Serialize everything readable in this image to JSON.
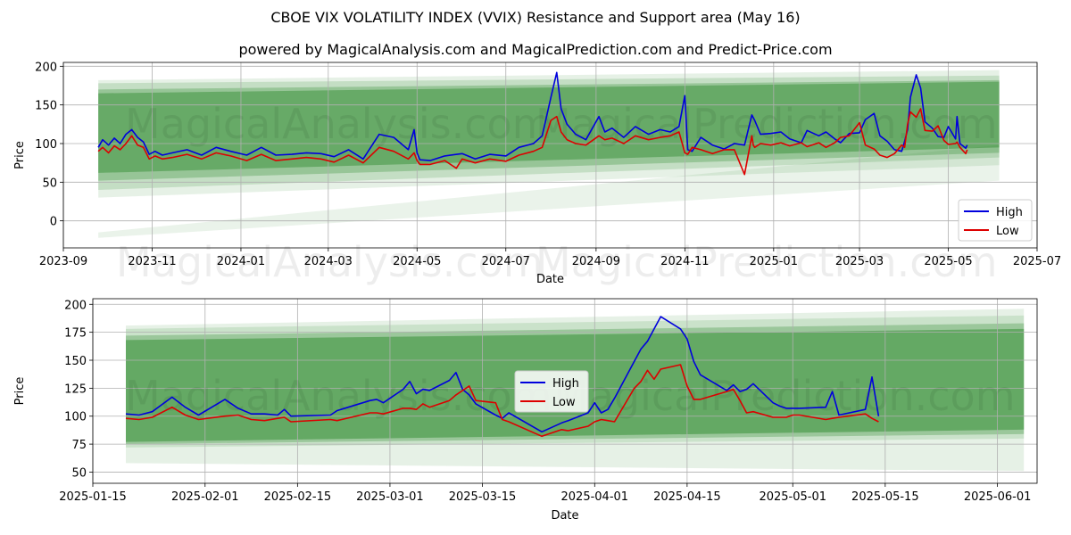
{
  "title": "CBOE VIX VOLATILITY INDEX (VVIX) Resistance and Support area (May 16)",
  "subtitle": "powered by MagicalAnalysis.com and MagicalPrediction.com and Predict-Price.com",
  "watermarks": [
    "MagicalAnalysis.com",
    "MagicalPrediction.com"
  ],
  "colors": {
    "high": "#0000dd",
    "low": "#dd0000",
    "band": "#2e8b2e",
    "grid": "#b0b0b0"
  },
  "chart_data": [
    {
      "type": "line",
      "xlabel": "Date",
      "ylabel": "Price",
      "xlim": [
        "2023-09-01",
        "2025-07-01"
      ],
      "ylim": [
        -35,
        205
      ],
      "x_ticks": [
        "2023-09",
        "2023-11",
        "2024-01",
        "2024-03",
        "2024-05",
        "2024-07",
        "2024-09",
        "2024-11",
        "2025-01",
        "2025-03",
        "2025-05",
        "2025-07"
      ],
      "x_tick_dates": [
        "2023-09-01",
        "2023-11-01",
        "2024-01-01",
        "2024-03-01",
        "2024-05-01",
        "2024-07-01",
        "2024-09-01",
        "2024-11-01",
        "2025-01-01",
        "2025-03-01",
        "2025-05-01",
        "2025-07-01"
      ],
      "y_ticks": [
        0,
        50,
        100,
        150,
        200
      ],
      "legend": {
        "position": "lower-right",
        "entries": [
          "High",
          "Low"
        ]
      },
      "grid": true,
      "bands": [
        {
          "start": "2023-09-25",
          "end": "2025-06-05",
          "y0_lo": 62,
          "y0_hi": 165,
          "y1_lo": 95,
          "y1_hi": 180,
          "opacity": 0.45
        },
        {
          "start": "2023-09-25",
          "end": "2025-06-05",
          "y0_lo": 52,
          "y0_hi": 170,
          "y1_lo": 88,
          "y1_hi": 182,
          "opacity": 0.3
        },
        {
          "start": "2023-09-25",
          "end": "2025-06-05",
          "y0_lo": 40,
          "y0_hi": 178,
          "y1_lo": 82,
          "y1_hi": 188,
          "opacity": 0.18
        },
        {
          "start": "2023-09-25",
          "end": "2025-06-05",
          "y0_lo": 30,
          "y0_hi": 182,
          "y1_lo": 72,
          "y1_hi": 195,
          "opacity": 0.12
        },
        {
          "start": "2023-09-25",
          "end": "2025-06-05",
          "y0_lo": -22,
          "y0_hi": -15,
          "y1_lo": 52,
          "y1_hi": 98,
          "opacity": 0.1
        }
      ],
      "series": [
        {
          "name": "High",
          "x": [
            "2023-09-25",
            "2023-09-28",
            "2023-10-02",
            "2023-10-06",
            "2023-10-10",
            "2023-10-14",
            "2023-10-18",
            "2023-10-22",
            "2023-10-26",
            "2023-10-30",
            "2023-11-03",
            "2023-11-08",
            "2023-11-15",
            "2023-11-25",
            "2023-12-05",
            "2023-12-15",
            "2023-12-25",
            "2024-01-05",
            "2024-01-15",
            "2024-01-25",
            "2024-02-05",
            "2024-02-15",
            "2024-02-25",
            "2024-03-05",
            "2024-03-15",
            "2024-03-25",
            "2024-04-05",
            "2024-04-15",
            "2024-04-25",
            "2024-04-29",
            "2024-05-01",
            "2024-05-03",
            "2024-05-10",
            "2024-05-20",
            "2024-06-01",
            "2024-06-10",
            "2024-06-20",
            "2024-07-01",
            "2024-07-10",
            "2024-07-20",
            "2024-07-26",
            "2024-08-01",
            "2024-08-05",
            "2024-08-08",
            "2024-08-12",
            "2024-08-18",
            "2024-08-25",
            "2024-09-03",
            "2024-09-07",
            "2024-09-12",
            "2024-09-20",
            "2024-09-28",
            "2024-10-07",
            "2024-10-15",
            "2024-10-22",
            "2024-10-28",
            "2024-11-01",
            "2024-11-03",
            "2024-11-06",
            "2024-11-12",
            "2024-11-20",
            "2024-11-28",
            "2024-12-05",
            "2024-12-12",
            "2024-12-17",
            "2024-12-19",
            "2024-12-23",
            "2024-12-30",
            "2025-01-06",
            "2025-01-12",
            "2025-01-20",
            "2025-01-24",
            "2025-02-01",
            "2025-02-06",
            "2025-02-12",
            "2025-02-16",
            "2025-02-22",
            "2025-03-01",
            "2025-03-05",
            "2025-03-11",
            "2025-03-15",
            "2025-03-20",
            "2025-03-25",
            "2025-03-30",
            "2025-04-01",
            "2025-04-03",
            "2025-04-05",
            "2025-04-09",
            "2025-04-12",
            "2025-04-15",
            "2025-04-20",
            "2025-04-24",
            "2025-04-28",
            "2025-05-01",
            "2025-05-06",
            "2025-05-07",
            "2025-05-09",
            "2025-05-13",
            "2025-05-14"
          ],
          "values": [
            95,
            105,
            98,
            107,
            100,
            112,
            118,
            108,
            102,
            86,
            90,
            85,
            88,
            92,
            85,
            95,
            90,
            85,
            95,
            85,
            86,
            88,
            87,
            83,
            92,
            80,
            112,
            108,
            92,
            118,
            88,
            79,
            78,
            84,
            87,
            80,
            86,
            84,
            95,
            100,
            110,
            160,
            192,
            145,
            125,
            112,
            105,
            135,
            115,
            120,
            108,
            122,
            112,
            118,
            115,
            122,
            162,
            92,
            90,
            108,
            98,
            93,
            100,
            98,
            137,
            130,
            112,
            113,
            115,
            106,
            101,
            117,
            110,
            115,
            106,
            101,
            113,
            114,
            131,
            139,
            110,
            103,
            92,
            90,
            103,
            118,
            160,
            189,
            172,
            128,
            120,
            109,
            108,
            122,
            106,
            135,
            100,
            94,
            98
          ]
        },
        {
          "name": "Low",
          "x": [
            "2023-09-25",
            "2023-09-28",
            "2023-10-02",
            "2023-10-06",
            "2023-10-10",
            "2023-10-14",
            "2023-10-18",
            "2023-10-22",
            "2023-10-26",
            "2023-10-30",
            "2023-11-03",
            "2023-11-08",
            "2023-11-15",
            "2023-11-25",
            "2023-12-05",
            "2023-12-15",
            "2023-12-25",
            "2024-01-05",
            "2024-01-15",
            "2024-01-25",
            "2024-02-05",
            "2024-02-15",
            "2024-02-25",
            "2024-03-05",
            "2024-03-15",
            "2024-03-25",
            "2024-04-05",
            "2024-04-15",
            "2024-04-25",
            "2024-04-29",
            "2024-05-01",
            "2024-05-03",
            "2024-05-10",
            "2024-05-20",
            "2024-05-28",
            "2024-06-01",
            "2024-06-10",
            "2024-06-20",
            "2024-07-01",
            "2024-07-10",
            "2024-07-20",
            "2024-07-26",
            "2024-08-01",
            "2024-08-05",
            "2024-08-08",
            "2024-08-12",
            "2024-08-18",
            "2024-08-25",
            "2024-09-03",
            "2024-09-07",
            "2024-09-12",
            "2024-09-20",
            "2024-09-28",
            "2024-10-07",
            "2024-10-15",
            "2024-10-22",
            "2024-10-28",
            "2024-11-01",
            "2024-11-03",
            "2024-11-06",
            "2024-11-12",
            "2024-11-20",
            "2024-11-28",
            "2024-12-05",
            "2024-12-12",
            "2024-12-17",
            "2024-12-18",
            "2024-12-19",
            "2024-12-23",
            "2024-12-30",
            "2025-01-06",
            "2025-01-12",
            "2025-01-20",
            "2025-01-24",
            "2025-02-01",
            "2025-02-06",
            "2025-02-12",
            "2025-02-16",
            "2025-02-22",
            "2025-03-01",
            "2025-03-05",
            "2025-03-11",
            "2025-03-15",
            "2025-03-20",
            "2025-03-25",
            "2025-03-30",
            "2025-04-01",
            "2025-04-03",
            "2025-04-05",
            "2025-04-09",
            "2025-04-12",
            "2025-04-15",
            "2025-04-20",
            "2025-04-24",
            "2025-04-28",
            "2025-05-01",
            "2025-05-06",
            "2025-05-07",
            "2025-05-09",
            "2025-05-13",
            "2025-05-14"
          ],
          "values": [
            90,
            95,
            88,
            97,
            92,
            100,
            110,
            98,
            95,
            80,
            84,
            80,
            82,
            86,
            80,
            88,
            84,
            78,
            86,
            78,
            80,
            82,
            80,
            76,
            85,
            75,
            95,
            90,
            80,
            88,
            78,
            73,
            73,
            78,
            68,
            80,
            75,
            80,
            77,
            85,
            90,
            95,
            130,
            135,
            115,
            105,
            100,
            98,
            110,
            105,
            107,
            100,
            110,
            105,
            108,
            110,
            115,
            88,
            86,
            95,
            92,
            87,
            92,
            92,
            60,
            110,
            98,
            95,
            100,
            98,
            101,
            97,
            101,
            96,
            101,
            95,
            101,
            108,
            110,
            127,
            98,
            93,
            85,
            82,
            87,
            98,
            95,
            125,
            141,
            134,
            145,
            117,
            116,
            123,
            104,
            99,
            100,
            102,
            95,
            87,
            92
          ]
        }
      ]
    },
    {
      "type": "line",
      "xlabel": "Date",
      "ylabel": "Price",
      "xlim": [
        "2025-01-15",
        "2025-06-07"
      ],
      "ylim": [
        40,
        205
      ],
      "x_ticks": [
        "2025-01-15",
        "2025-02-01",
        "2025-02-15",
        "2025-03-01",
        "2025-03-15",
        "2025-04-01",
        "2025-04-15",
        "2025-05-01",
        "2025-05-15",
        "2025-06-01"
      ],
      "y_ticks": [
        50,
        75,
        100,
        125,
        150,
        175,
        200
      ],
      "legend": {
        "position": "center",
        "entries": [
          "High",
          "Low"
        ]
      },
      "grid": true,
      "bands": [
        {
          "start": "2025-01-20",
          "end": "2025-06-05",
          "y0_lo": 77,
          "y0_hi": 168,
          "y1_lo": 88,
          "y1_hi": 178,
          "opacity": 0.5
        },
        {
          "start": "2025-01-20",
          "end": "2025-06-05",
          "y0_lo": 75,
          "y0_hi": 172,
          "y1_lo": 84,
          "y1_hi": 183,
          "opacity": 0.3
        },
        {
          "start": "2025-01-20",
          "end": "2025-06-05",
          "y0_lo": 72,
          "y0_hi": 178,
          "y1_lo": 80,
          "y1_hi": 190,
          "opacity": 0.15
        },
        {
          "start": "2025-01-20",
          "end": "2025-06-05",
          "y0_lo": 58,
          "y0_hi": 181,
          "y1_lo": 51,
          "y1_hi": 196,
          "opacity": 0.12
        }
      ],
      "series": [
        {
          "name": "High",
          "x": [
            "2025-01-20",
            "2025-01-22",
            "2025-01-24",
            "2025-01-27",
            "2025-01-29",
            "2025-01-31",
            "2025-02-04",
            "2025-02-06",
            "2025-02-08",
            "2025-02-10",
            "2025-02-12",
            "2025-02-13",
            "2025-02-14",
            "2025-02-20",
            "2025-02-21",
            "2025-02-26",
            "2025-02-27",
            "2025-02-28",
            "2025-03-03",
            "2025-03-04",
            "2025-03-05",
            "2025-03-06",
            "2025-03-07",
            "2025-03-10",
            "2025-03-11",
            "2025-03-12",
            "2025-03-13",
            "2025-03-14",
            "2025-03-17",
            "2025-03-18",
            "2025-03-19",
            "2025-03-24",
            "2025-03-27",
            "2025-03-28",
            "2025-03-31",
            "2025-04-01",
            "2025-04-02",
            "2025-04-03",
            "2025-04-04",
            "2025-04-07",
            "2025-04-08",
            "2025-04-09",
            "2025-04-10",
            "2025-04-11",
            "2025-04-14",
            "2025-04-15",
            "2025-04-16",
            "2025-04-17",
            "2025-04-21",
            "2025-04-22",
            "2025-04-23",
            "2025-04-24",
            "2025-04-25",
            "2025-04-28",
            "2025-04-29",
            "2025-04-30",
            "2025-05-01",
            "2025-05-02",
            "2025-05-06",
            "2025-05-07",
            "2025-05-08",
            "2025-05-12",
            "2025-05-13",
            "2025-05-14"
          ],
          "values": [
            102,
            101,
            104,
            117,
            108,
            101,
            115,
            107,
            102,
            102,
            101,
            106,
            100,
            101,
            105,
            114,
            115,
            112,
            124,
            131,
            120,
            124,
            123,
            132,
            139,
            124,
            119,
            111,
            101,
            98,
            103,
            86,
            94,
            96,
            103,
            112,
            103,
            106,
            116,
            149,
            160,
            167,
            178,
            189,
            178,
            169,
            149,
            137,
            123,
            128,
            122,
            124,
            129,
            112,
            109,
            107,
            107,
            107,
            108,
            122,
            101,
            106,
            135,
            100
          ]
        },
        {
          "name": "Low",
          "x": [
            "2025-01-20",
            "2025-01-22",
            "2025-01-24",
            "2025-01-27",
            "2025-01-29",
            "2025-01-31",
            "2025-02-04",
            "2025-02-06",
            "2025-02-08",
            "2025-02-10",
            "2025-02-12",
            "2025-02-13",
            "2025-02-14",
            "2025-02-20",
            "2025-02-21",
            "2025-02-26",
            "2025-02-27",
            "2025-02-28",
            "2025-03-03",
            "2025-03-04",
            "2025-03-05",
            "2025-03-06",
            "2025-03-07",
            "2025-03-10",
            "2025-03-11",
            "2025-03-12",
            "2025-03-13",
            "2025-03-14",
            "2025-03-17",
            "2025-03-18",
            "2025-03-19",
            "2025-03-24",
            "2025-03-27",
            "2025-03-28",
            "2025-03-31",
            "2025-04-01",
            "2025-04-02",
            "2025-04-03",
            "2025-04-04",
            "2025-04-07",
            "2025-04-08",
            "2025-04-09",
            "2025-04-10",
            "2025-04-11",
            "2025-04-14",
            "2025-04-15",
            "2025-04-16",
            "2025-04-17",
            "2025-04-21",
            "2025-04-22",
            "2025-04-23",
            "2025-04-24",
            "2025-04-25",
            "2025-04-28",
            "2025-04-29",
            "2025-04-30",
            "2025-05-01",
            "2025-05-02",
            "2025-05-06",
            "2025-05-07",
            "2025-05-08",
            "2025-05-12",
            "2025-05-13",
            "2025-05-14"
          ],
          "values": [
            98,
            97,
            99,
            108,
            101,
            97,
            100,
            101,
            97,
            96,
            98,
            99,
            95,
            97,
            96,
            103,
            103,
            102,
            107,
            107,
            106,
            111,
            108,
            114,
            119,
            123,
            127,
            114,
            112,
            97,
            95,
            82,
            88,
            87,
            91,
            95,
            97,
            96,
            95,
            125,
            131,
            141,
            133,
            142,
            146,
            127,
            115,
            115,
            122,
            124,
            114,
            103,
            104,
            99,
            99,
            99,
            101,
            101,
            97,
            98,
            99,
            102,
            98,
            95
          ]
        }
      ]
    }
  ]
}
